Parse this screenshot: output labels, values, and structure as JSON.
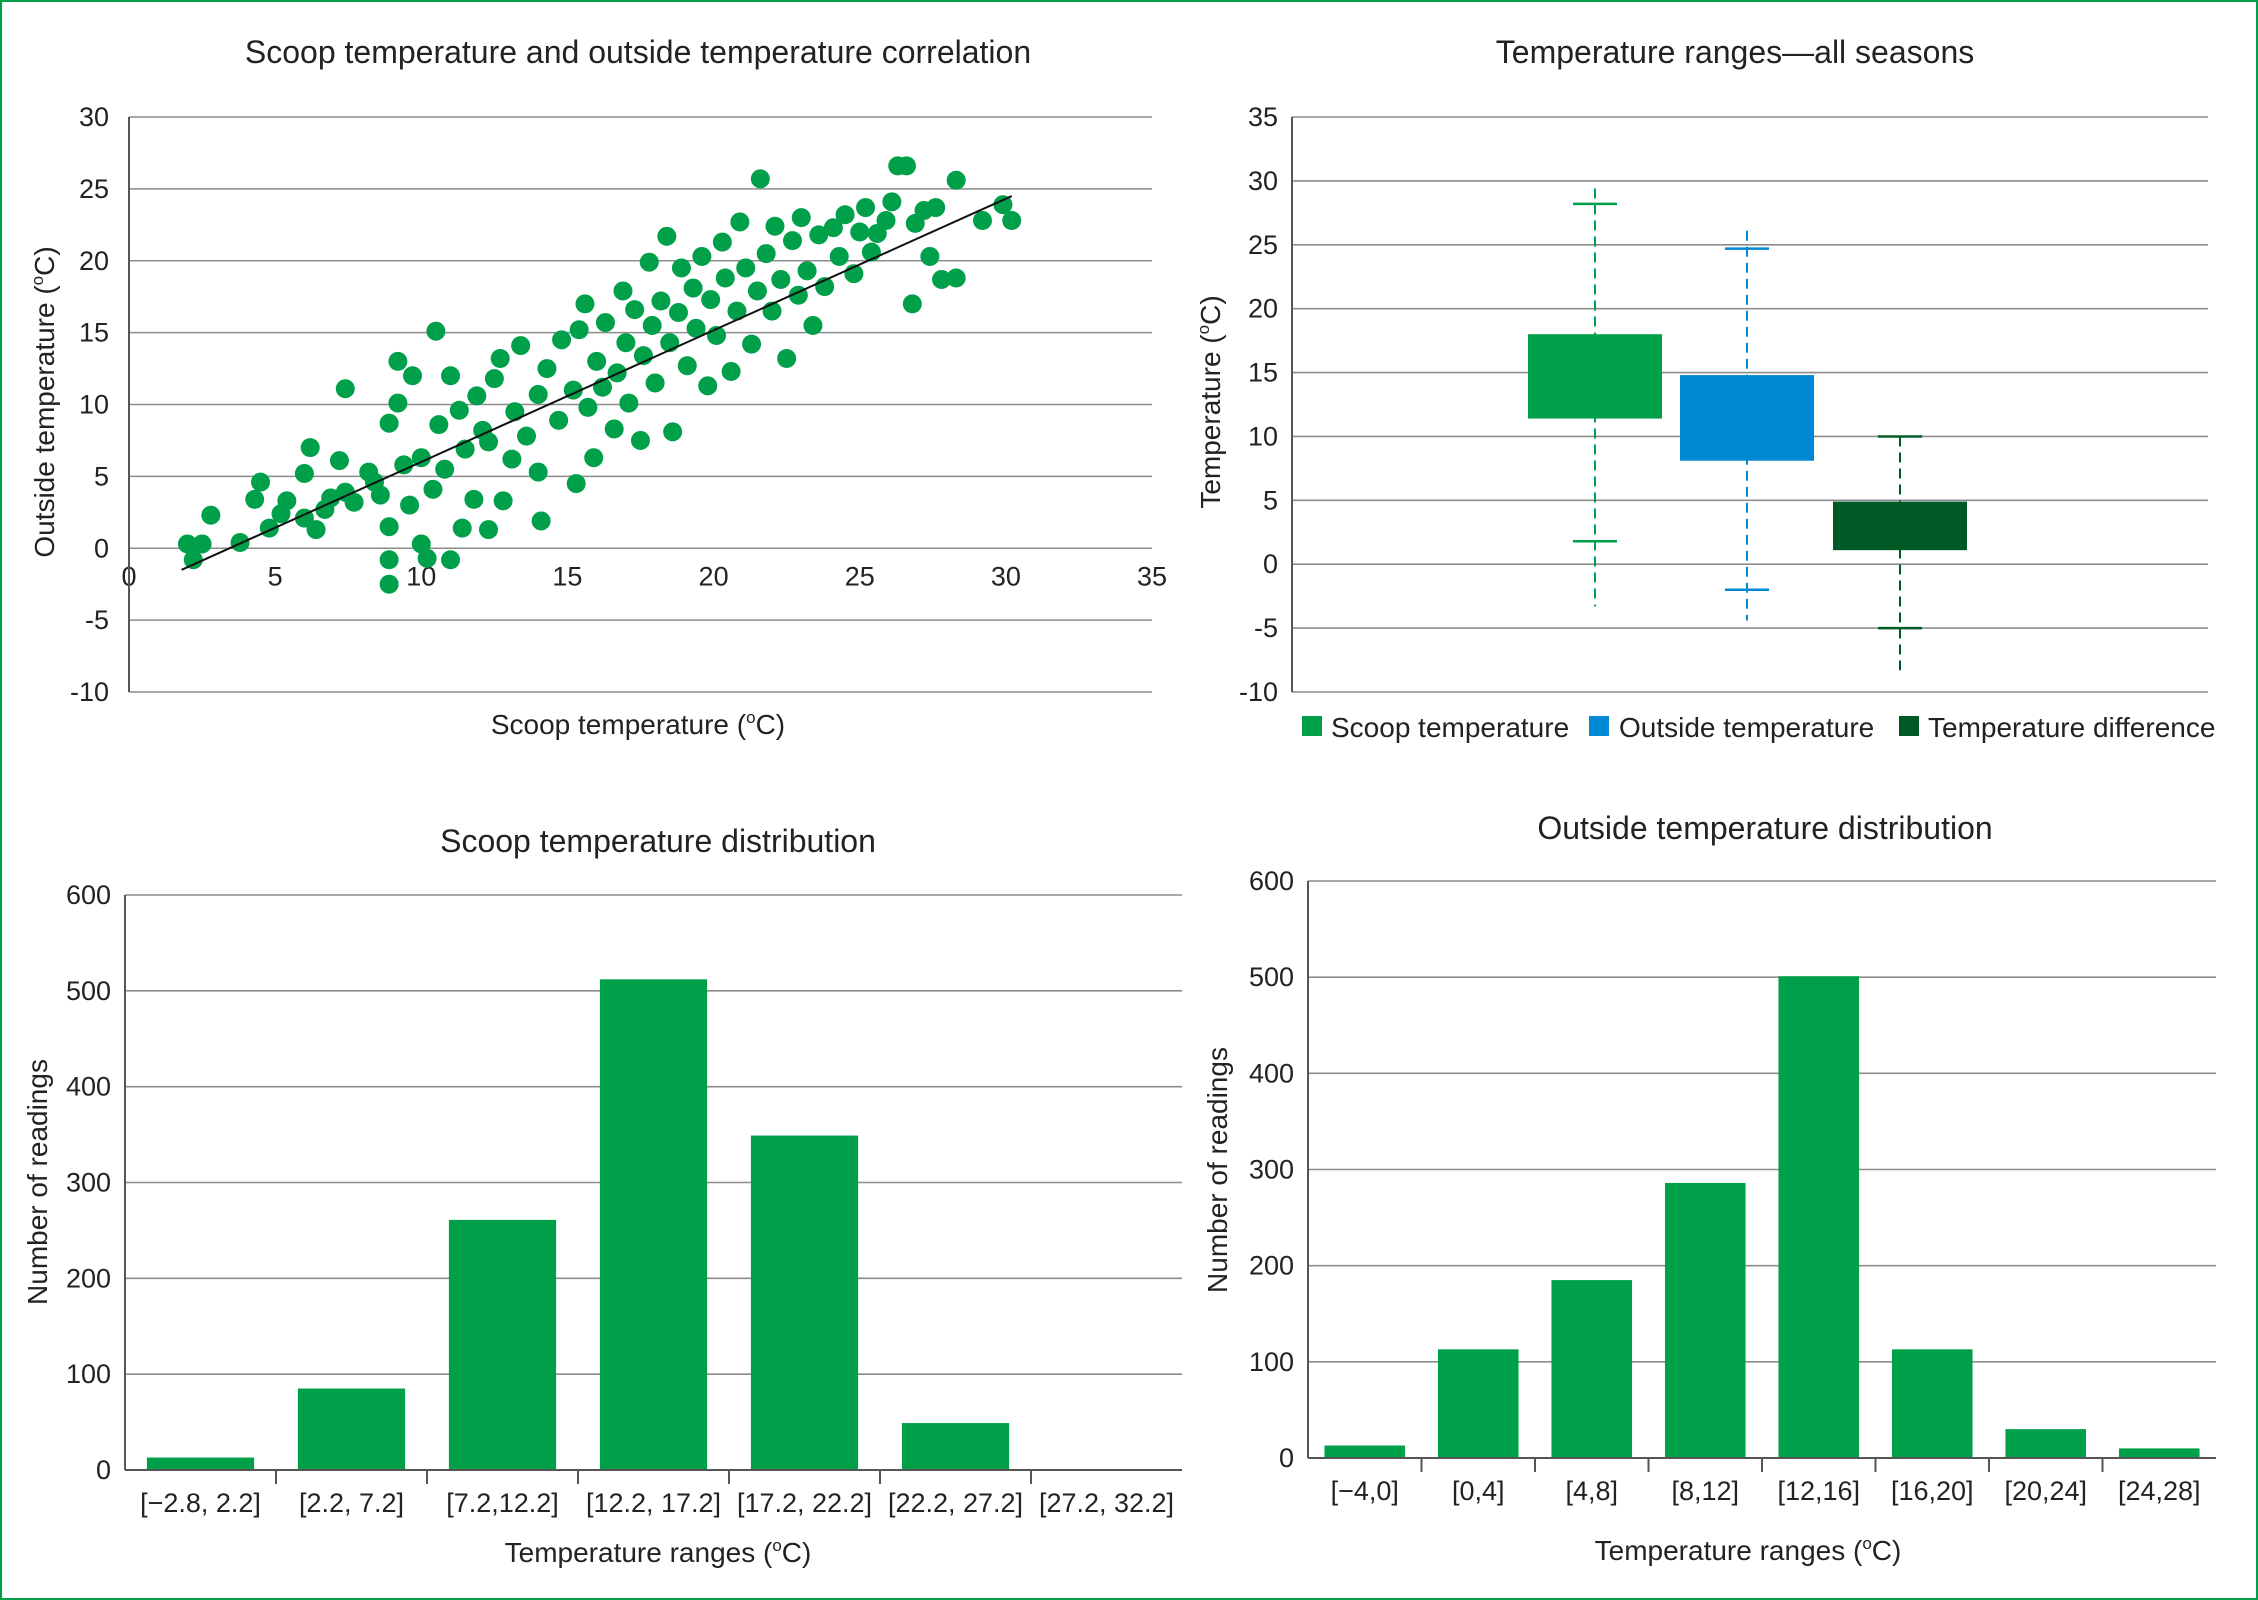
{
  "colors": {
    "frame": "#00a04b",
    "scoop": "#00a04b",
    "outside": "#0088d2",
    "difference": "#005a26",
    "trendline": "#111111",
    "grid": "#8c8c8c"
  },
  "chart_data": [
    {
      "id": "scatter",
      "type": "scatter",
      "title": "Scoop temperature and outside temperature correlation",
      "xlabel": "Scoop temperature  (oC)",
      "xlabel_main": "Scoop temperature  (",
      "xlabel_sup": "o",
      "xlabel_tail": "C)",
      "ylabel": "Outside temperature (oC)",
      "ylabel_main": "Outside temperature (",
      "ylabel_sup": "o",
      "ylabel_tail": "C)",
      "xlim": [
        0,
        35
      ],
      "ylim": [
        -10,
        30
      ],
      "x_ticks": [
        "0",
        "5",
        "10",
        "15",
        "20",
        "25",
        "30",
        "35"
      ],
      "y_ticks": [
        "30",
        "25",
        "20",
        "15",
        "10",
        "5",
        "0",
        "-5",
        "-10"
      ],
      "grid": true,
      "trendline": {
        "x": [
          1.8,
          30.2
        ],
        "y": [
          -1.5,
          24.5
        ]
      },
      "points": [
        [
          2,
          0.3
        ],
        [
          2.2,
          -0.8
        ],
        [
          2.5,
          0.3
        ],
        [
          2.8,
          2.3
        ],
        [
          3.8,
          0.4
        ],
        [
          4.3,
          3.4
        ],
        [
          4.5,
          4.6
        ],
        [
          4.8,
          1.4
        ],
        [
          5.2,
          2.4
        ],
        [
          5.4,
          3.3
        ],
        [
          6.0,
          5.2
        ],
        [
          6.0,
          2.1
        ],
        [
          6.2,
          7.0
        ],
        [
          6.4,
          1.3
        ],
        [
          6.7,
          2.7
        ],
        [
          6.9,
          3.5
        ],
        [
          7.2,
          6.1
        ],
        [
          7.4,
          3.9
        ],
        [
          7.4,
          11.1
        ],
        [
          7.7,
          3.2
        ],
        [
          8.2,
          5.3
        ],
        [
          8.4,
          4.6
        ],
        [
          8.6,
          3.7
        ],
        [
          8.9,
          8.7
        ],
        [
          8.9,
          1.5
        ],
        [
          8.9,
          -0.8
        ],
        [
          8.9,
          -2.5
        ],
        [
          9.2,
          13.0
        ],
        [
          9.2,
          10.1
        ],
        [
          9.4,
          5.8
        ],
        [
          9.6,
          3.0
        ],
        [
          9.7,
          12.0
        ],
        [
          10.0,
          6.3
        ],
        [
          10.0,
          0.3
        ],
        [
          10.2,
          -0.7
        ],
        [
          10.4,
          4.1
        ],
        [
          10.5,
          15.1
        ],
        [
          10.6,
          8.6
        ],
        [
          10.8,
          5.5
        ],
        [
          11.0,
          -0.8
        ],
        [
          11.0,
          12.0
        ],
        [
          11.3,
          9.6
        ],
        [
          11.4,
          1.4
        ],
        [
          11.5,
          6.9
        ],
        [
          11.8,
          3.4
        ],
        [
          11.9,
          10.6
        ],
        [
          12.1,
          8.2
        ],
        [
          12.3,
          7.4
        ],
        [
          12.3,
          1.3
        ],
        [
          12.5,
          11.8
        ],
        [
          12.7,
          13.2
        ],
        [
          12.8,
          3.3
        ],
        [
          13.1,
          6.2
        ],
        [
          13.2,
          9.5
        ],
        [
          13.4,
          14.1
        ],
        [
          13.6,
          7.8
        ],
        [
          14.0,
          10.7
        ],
        [
          14.0,
          5.3
        ],
        [
          14.1,
          1.9
        ],
        [
          14.3,
          12.5
        ],
        [
          14.7,
          8.9
        ],
        [
          14.8,
          14.5
        ],
        [
          15.2,
          11.0
        ],
        [
          15.3,
          4.5
        ],
        [
          15.4,
          15.2
        ],
        [
          15.6,
          17.0
        ],
        [
          15.7,
          9.8
        ],
        [
          15.9,
          6.3
        ],
        [
          16.0,
          13.0
        ],
        [
          16.2,
          11.2
        ],
        [
          16.3,
          15.7
        ],
        [
          16.6,
          8.3
        ],
        [
          16.7,
          12.2
        ],
        [
          16.9,
          17.9
        ],
        [
          17.0,
          14.3
        ],
        [
          17.1,
          10.1
        ],
        [
          17.3,
          16.6
        ],
        [
          17.5,
          7.5
        ],
        [
          17.6,
          13.4
        ],
        [
          17.8,
          19.9
        ],
        [
          17.9,
          15.5
        ],
        [
          18.0,
          11.5
        ],
        [
          18.2,
          17.2
        ],
        [
          18.4,
          21.7
        ],
        [
          18.5,
          14.3
        ],
        [
          18.6,
          8.1
        ],
        [
          18.8,
          16.4
        ],
        [
          18.9,
          19.5
        ],
        [
          19.1,
          12.7
        ],
        [
          19.3,
          18.1
        ],
        [
          19.4,
          15.3
        ],
        [
          19.6,
          20.3
        ],
        [
          19.8,
          11.3
        ],
        [
          19.9,
          17.3
        ],
        [
          20.1,
          14.8
        ],
        [
          20.3,
          21.3
        ],
        [
          20.4,
          18.8
        ],
        [
          20.6,
          12.3
        ],
        [
          20.8,
          16.5
        ],
        [
          20.9,
          22.7
        ],
        [
          21.1,
          19.5
        ],
        [
          21.3,
          14.2
        ],
        [
          21.5,
          17.9
        ],
        [
          21.6,
          25.7
        ],
        [
          21.8,
          20.5
        ],
        [
          22.0,
          16.5
        ],
        [
          22.1,
          22.4
        ],
        [
          22.3,
          18.7
        ],
        [
          22.5,
          13.2
        ],
        [
          22.7,
          21.4
        ],
        [
          22.9,
          17.6
        ],
        [
          23.0,
          23.0
        ],
        [
          23.2,
          19.3
        ],
        [
          23.4,
          15.5
        ],
        [
          23.6,
          21.8
        ],
        [
          23.8,
          18.2
        ],
        [
          24.1,
          22.3
        ],
        [
          24.3,
          20.3
        ],
        [
          24.5,
          23.2
        ],
        [
          24.8,
          19.1
        ],
        [
          25.0,
          22.0
        ],
        [
          25.2,
          23.7
        ],
        [
          25.4,
          20.6
        ],
        [
          25.6,
          21.9
        ],
        [
          25.9,
          22.8
        ],
        [
          26.1,
          24.1
        ],
        [
          26.3,
          26.6
        ],
        [
          26.6,
          26.6
        ],
        [
          26.8,
          17.0
        ],
        [
          26.9,
          22.6
        ],
        [
          27.2,
          23.5
        ],
        [
          27.4,
          20.3
        ],
        [
          27.6,
          23.7
        ],
        [
          27.8,
          18.7
        ],
        [
          28.3,
          25.6
        ],
        [
          28.3,
          18.8
        ],
        [
          29.2,
          22.8
        ],
        [
          29.9,
          23.9
        ],
        [
          30.2,
          22.8
        ]
      ]
    },
    {
      "id": "boxplot",
      "type": "box",
      "title": "Temperature ranges—all seasons",
      "ylabel": "Temperature (oC)",
      "ylabel_main": "Temperature (",
      "ylabel_sup": "o",
      "ylabel_tail": "C)",
      "ylim": [
        -10,
        35
      ],
      "y_ticks": [
        "35",
        "30",
        "25",
        "20",
        "15",
        "10",
        "5",
        "0",
        "-5",
        "-10"
      ],
      "grid": true,
      "legend_position": "bottom",
      "series": [
        {
          "name": "Scoop temperature",
          "color": "#00a04b",
          "min": -3.3,
          "whisker_low": 1.8,
          "q1": 11.4,
          "q3": 18.0,
          "whisker_high": 28.2,
          "max": 29.4
        },
        {
          "name": "Outside temperature",
          "color": "#0088d2",
          "min": -4.4,
          "whisker_low": -2.0,
          "q1": 8.1,
          "q3": 14.8,
          "whisker_high": 24.7,
          "max": 26.1
        },
        {
          "name": "Temperature difference",
          "color": "#005a26",
          "min": -8.3,
          "whisker_low": -5.0,
          "q1": 1.1,
          "q3": 4.9,
          "whisker_high": 10.0,
          "max": 10.0
        }
      ]
    },
    {
      "id": "scoop-hist",
      "type": "bar",
      "title": "Scoop temperature distribution",
      "xlabel": "Temperature ranges (oC)",
      "xlabel_main": "Temperature ranges (",
      "xlabel_sup": "o",
      "xlabel_tail": "C)",
      "ylabel": "Number of readings",
      "ylim": [
        0,
        600
      ],
      "y_ticks": [
        "600",
        "500",
        "400",
        "300",
        "200",
        "100",
        "0"
      ],
      "grid": true,
      "color": "#00a04b",
      "categories": [
        "[−2.8, 2.2]",
        "[2.2, 7.2]",
        "[7.2,12.2]",
        "[12.2, 17.2]",
        "[17.2, 22.2]",
        "[22.2, 27.2]",
        "[27.2, 32.2]"
      ],
      "values": [
        13,
        85,
        261,
        512,
        349,
        49,
        0
      ]
    },
    {
      "id": "outside-hist",
      "type": "bar",
      "title": "Outside temperature distribution",
      "xlabel": "Temperature ranges (oC)",
      "xlabel_main": "Temperature ranges (",
      "xlabel_sup": "o",
      "xlabel_tail": "C)",
      "ylabel": "Number of readings",
      "ylim": [
        0,
        600
      ],
      "y_ticks": [
        "600",
        "500",
        "400",
        "300",
        "200",
        "100",
        "0"
      ],
      "grid": true,
      "color": "#00a04b",
      "categories": [
        "[−4,0]",
        "[0,4]",
        "[4,8]",
        "[8,12]",
        "[12,16]",
        "[16,20]",
        "[20,24]",
        "[24,28]"
      ],
      "values": [
        13,
        113,
        185,
        286,
        501,
        113,
        30,
        10
      ]
    }
  ]
}
